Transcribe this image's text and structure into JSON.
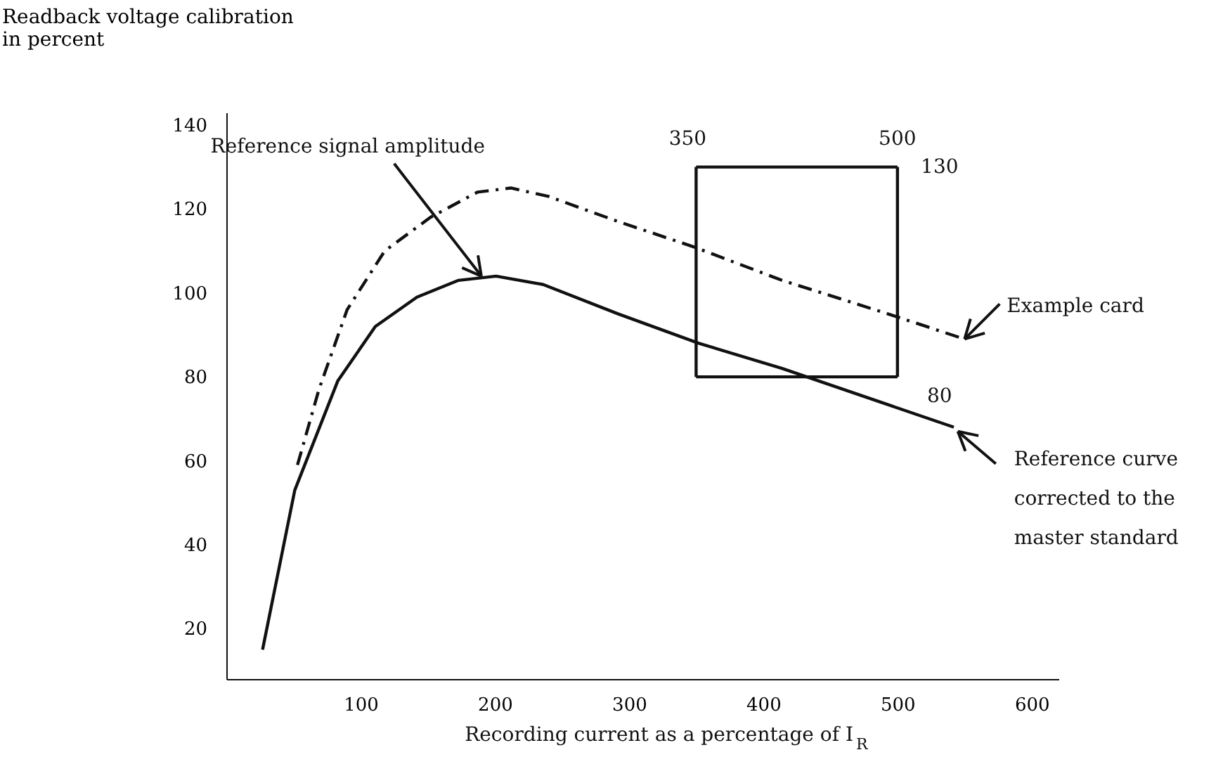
{
  "chart_data": {
    "type": "line",
    "xlabel": "Recording current as a percentage of I$_{R}$",
    "ylabel": "Readback voltage calibration\nin percent",
    "xlim": [
      0,
      620
    ],
    "ylim": [
      8,
      143
    ],
    "xticks": [
      100,
      200,
      300,
      400,
      500,
      600
    ],
    "yticks": [
      20,
      40,
      60,
      80,
      100,
      120,
      140
    ],
    "grid": false,
    "marker": "none",
    "series": [
      {
        "color": "#111111",
        "line_style": "solid",
        "x": [
          27,
          51,
          83,
          111,
          142,
          173,
          201,
          236,
          292,
          352,
          414,
          542
        ],
        "values": [
          15,
          53,
          79,
          92,
          99,
          103,
          104,
          102,
          95,
          88,
          82,
          68
        ]
      },
      {
        "color": "#111111",
        "line_style": "dashed",
        "x": [
          53,
          69,
          90,
          118,
          152,
          187,
          212,
          240,
          292,
          348,
          414,
          493,
          550
        ],
        "values": [
          59,
          77,
          96,
          110,
          118,
          124,
          125,
          123,
          117,
          111,
          103,
          95,
          89
        ]
      },
      {
        "color": "#111111",
        "line_style": "solid",
        "x": [
          350,
          500
        ],
        "values": [
          130,
          130
        ]
      },
      {
        "color": "#111111",
        "line_style": "solid",
        "x": [
          350,
          500
        ],
        "values": [
          80,
          80
        ]
      },
      {
        "color": "#111111",
        "line_style": "solid",
        "x": [
          350,
          350
        ],
        "values": [
          80,
          130
        ]
      },
      {
        "color": "#111111",
        "line_style": "solid",
        "x": [
          500,
          500
        ],
        "values": [
          80,
          130
        ]
      }
    ],
    "annotations": [
      {
        "text": "Reference signal amplitude",
        "x": 190,
        "y": 104
      },
      {
        "text": "Example card",
        "x": 550,
        "y": 89
      },
      {
        "text": "Reference curve\ncorrected to the\nmaster standard",
        "x": 545,
        "y": 67
      },
      {
        "text": "350",
        "x": 350,
        "y": 130
      },
      {
        "text": "500",
        "x": 500,
        "y": 130
      },
      {
        "text": "130",
        "x": 500,
        "y": 130
      },
      {
        "text": "80",
        "x": 500,
        "y": 80
      }
    ]
  }
}
